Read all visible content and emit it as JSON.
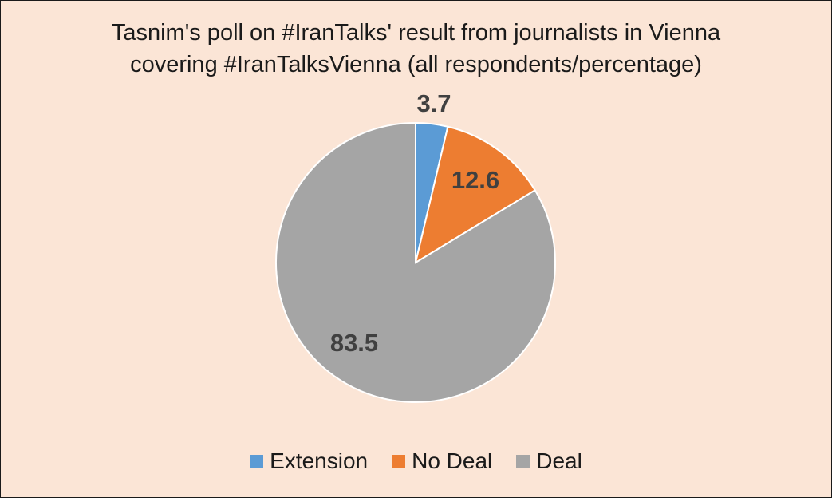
{
  "chart_data": {
    "type": "pie",
    "title_lines": [
      "Tasnim's poll on #IranTalks' result from journalists in Vienna",
      "covering #IranTalksVienna (all respondents/percentage)"
    ],
    "categories": [
      "Extension",
      "No Deal",
      "Deal"
    ],
    "values": [
      3.7,
      12.6,
      83.5
    ],
    "value_labels": [
      "3.7",
      "12.6",
      "83.5"
    ],
    "colors": [
      "#5b9bd5",
      "#ed7d31",
      "#a5a5a5"
    ],
    "start_angle_deg": 0,
    "direction": "clockwise",
    "legend_position": "bottom",
    "background_color": "#fbe5d6"
  }
}
